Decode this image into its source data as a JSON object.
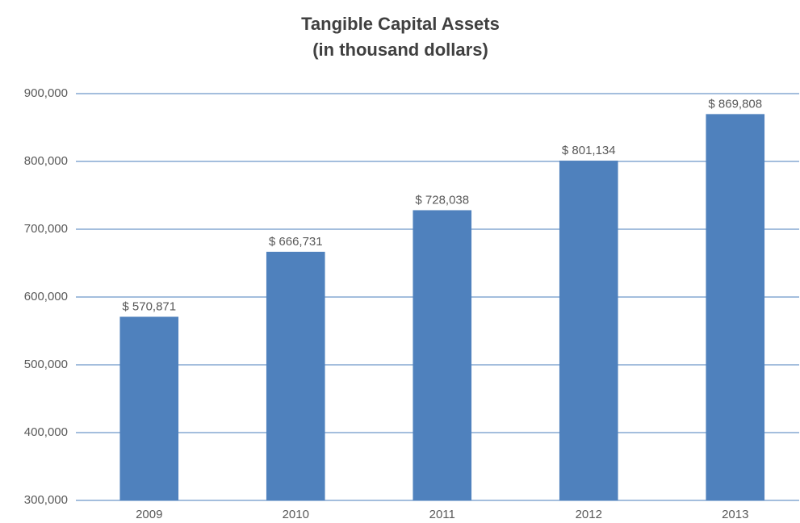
{
  "chart_data": {
    "type": "bar",
    "title": "Tangible Capital Assets",
    "subtitle": "(in thousand dollars)",
    "categories": [
      "2009",
      "2010",
      "2011",
      "2012",
      "2013"
    ],
    "values": [
      570871,
      666731,
      728038,
      801134,
      869808
    ],
    "value_labels": [
      "$ 570,871",
      "$ 666,731",
      "$ 728,038",
      "$ 801,134",
      "$ 869,808"
    ],
    "color": "#4f81bd",
    "ylim": [
      300000,
      900000
    ],
    "yticks": [
      {
        "value": 300000,
        "label": "300,000"
      },
      {
        "value": 400000,
        "label": "400,000"
      },
      {
        "value": 500000,
        "label": "500,000"
      },
      {
        "value": 600000,
        "label": "600,000"
      },
      {
        "value": 700000,
        "label": "700,000"
      },
      {
        "value": 800000,
        "label": "800,000"
      },
      {
        "value": 900000,
        "label": "900,000"
      }
    ],
    "grid": true,
    "grid_color": "#4a7ebb"
  }
}
